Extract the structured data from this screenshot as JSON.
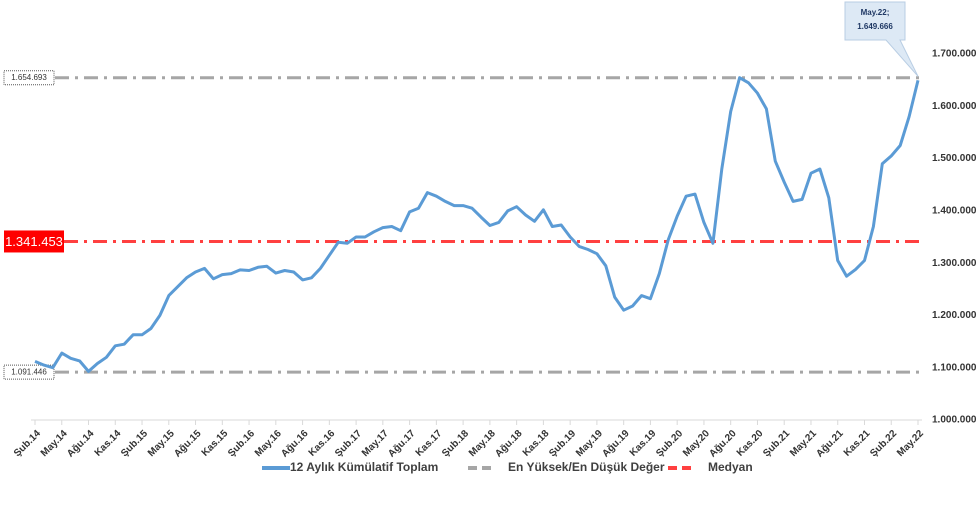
{
  "chart_data": {
    "type": "line",
    "categories": [
      "Şub.14",
      null,
      null,
      "May.14",
      null,
      null,
      "Ağu.14",
      null,
      null,
      "Kas.14",
      null,
      null,
      "Şub.15",
      null,
      null,
      "May.15",
      null,
      null,
      "Ağu.15",
      null,
      null,
      "Kas.15",
      null,
      null,
      "Şub.16",
      null,
      null,
      "May.16",
      null,
      null,
      "Ağu.16",
      null,
      null,
      "Kas.16",
      null,
      null,
      "Şub.17",
      null,
      null,
      "May.17",
      null,
      null,
      "Ağu.17",
      null,
      null,
      "Kas.17",
      null,
      null,
      "Şub.18",
      null,
      null,
      "May.18",
      null,
      null,
      "Ağu.18",
      null,
      null,
      "Kas.18",
      null,
      null,
      "Şub.19",
      null,
      null,
      "May.19",
      null,
      null,
      "Ağu.19",
      null,
      null,
      "Kas.19",
      null,
      null,
      "Şub.20",
      null,
      null,
      "May.20",
      null,
      null,
      "Ağu.20",
      null,
      null,
      "Kas.20",
      null,
      null,
      "Şub.21",
      null,
      null,
      "May.21",
      null,
      null,
      "Ağu.21",
      null,
      null,
      "Kas.21",
      null,
      null,
      "Şub.22",
      null,
      null,
      "May.22"
    ],
    "series": [
      {
        "name": "12 Aylık Kümülatif Toplam",
        "color": "#5b9bd5",
        "values": [
          1112000,
          1105000,
          1100000,
          1128000,
          1118000,
          1113000,
          1093000,
          1108000,
          1120000,
          1142000,
          1145000,
          1163000,
          1163000,
          1175000,
          1200000,
          1238000,
          1255000,
          1272000,
          1283000,
          1290000,
          1270000,
          1278000,
          1280000,
          1287000,
          1286000,
          1292000,
          1294000,
          1281000,
          1286000,
          1283000,
          1268000,
          1272000,
          1290000,
          1315000,
          1340000,
          1338000,
          1350000,
          1350000,
          1360000,
          1368000,
          1370000,
          1362000,
          1398000,
          1405000,
          1435000,
          1428000,
          1418000,
          1410000,
          1410000,
          1405000,
          1388000,
          1372000,
          1378000,
          1400000,
          1408000,
          1392000,
          1380000,
          1402000,
          1370000,
          1373000,
          1350000,
          1332000,
          1326000,
          1318000,
          1295000,
          1235000,
          1210000,
          1218000,
          1238000,
          1232000,
          1280000,
          1345000,
          1390000,
          1428000,
          1432000,
          1378000,
          1338000,
          1480000,
          1590000,
          1654693,
          1645000,
          1625000,
          1595000,
          1495000,
          1455000,
          1418000,
          1422000,
          1472000,
          1480000,
          1425000,
          1305000,
          1275000,
          1288000,
          1305000,
          1370000,
          1490000,
          1505000,
          1525000,
          1580000,
          1649666
        ]
      }
    ],
    "hilo": {
      "name": "En Yüksek/En Düşük Değer",
      "color": "#a6a6a6",
      "lines": [
        {
          "value": 1654693,
          "label": "1.654.693"
        },
        {
          "value": 1091446,
          "label": "1.091.446"
        }
      ]
    },
    "median": {
      "name": "Medyan",
      "color": "#ff4040",
      "value": 1341453,
      "label": "1.341.453"
    },
    "annotation": {
      "lines": [
        "May.22;",
        "1.649.666"
      ]
    },
    "ylim": [
      1000000,
      1700000
    ],
    "yticks": [
      {
        "value": 1000000,
        "label": "1.000.000"
      },
      {
        "value": 1100000,
        "label": "1.100.000"
      },
      {
        "value": 1200000,
        "label": "1.200.000"
      },
      {
        "value": 1300000,
        "label": "1.300.000"
      },
      {
        "value": 1400000,
        "label": "1.400.000"
      },
      {
        "value": 1500000,
        "label": "1.500.000"
      },
      {
        "value": 1600000,
        "label": "1.600.000"
      },
      {
        "value": 1700000,
        "label": "1.700.000"
      }
    ],
    "grid": false
  }
}
